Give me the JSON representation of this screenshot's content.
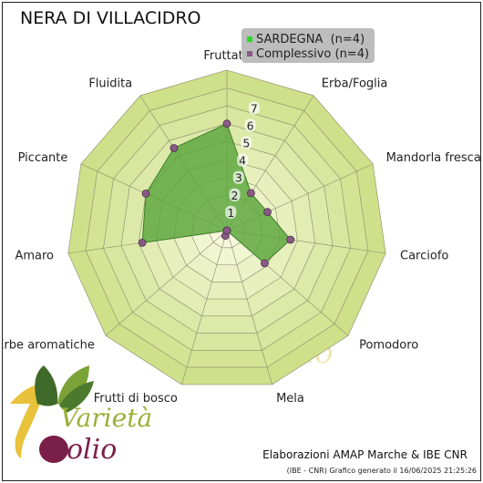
{
  "chart_data": {
    "type": "radar",
    "title": "NERA DI VILLACIDRO",
    "categories": [
      "Fruttato",
      "Erba/Foglia",
      "Mandorla fresca",
      "Carciofo",
      "Pomodoro",
      "Mela",
      "Frutti di bosco",
      "Erbe aromatiche",
      "Amaro",
      "Piccante",
      "Fluidita"
    ],
    "rticks": [
      "1",
      "2",
      "3",
      "4",
      "5",
      "6",
      "7"
    ],
    "rmax": 9,
    "grid": true,
    "legend_position": "top-right",
    "series": [
      {
        "name": "SARDEGNA  (n=4)",
        "color": "#22dd22",
        "values": [
          6.0,
          2.5,
          2.5,
          3.6,
          2.8,
          0,
          0.3,
          0,
          4.8,
          5.0,
          5.5
        ]
      },
      {
        "name": "Complessivo (n=4)",
        "color": "#8a5a86",
        "values": [
          6.0,
          2.5,
          2.5,
          3.6,
          2.8,
          0,
          0.3,
          0,
          4.8,
          5.0,
          5.5
        ]
      }
    ]
  },
  "credits": {
    "line1": "Elaborazioni AMAP Marche & IBE CNR",
    "line2": "(IBE - CNR) Grafico generato il 16/06/2025 21:25:26"
  },
  "logo": {
    "word1": "Varietà",
    "word2": "olio",
    "digit": "1"
  },
  "watermark": "olio",
  "colors": {
    "ring_outer": "#cfe08a",
    "ring_inner": "#f2f6d4",
    "fill": "#5aa63c",
    "complessivo_point": "#8a5a86"
  }
}
